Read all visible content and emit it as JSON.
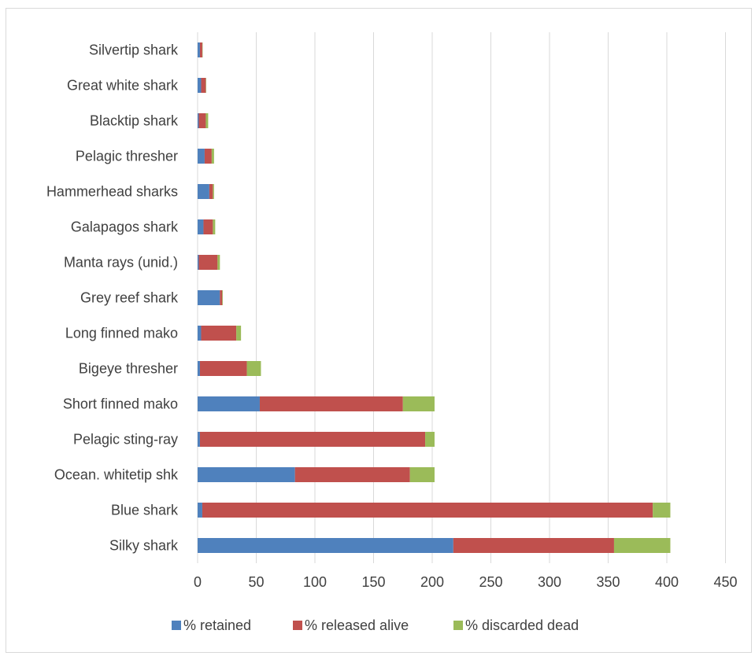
{
  "chart_data": {
    "type": "bar",
    "orientation": "horizontal",
    "stacked": true,
    "title": "",
    "xlabel": "",
    "ylabel": "",
    "categories": [
      "Silky shark",
      "Blue shark",
      "Ocean. whitetip shk",
      "Pelagic sting-ray",
      "Short finned mako",
      "Bigeye thresher",
      "Long finned mako",
      "Grey reef shark",
      "Manta rays (unid.)",
      "Galapagos shark",
      "Hammerhead sharks",
      "Pelagic thresher",
      "Blacktip shark",
      "Great white shark",
      "Silvertip shark"
    ],
    "series": [
      {
        "name": "% retained",
        "color": "#4f81bd",
        "values": [
          218,
          4,
          83,
          2,
          53,
          2,
          3,
          19,
          1,
          5,
          10,
          6,
          1,
          3,
          2
        ]
      },
      {
        "name": "% released alive",
        "color": "#c0504d",
        "values": [
          137,
          384,
          98,
          192,
          122,
          40,
          30,
          2,
          16,
          8,
          3,
          6,
          6,
          4,
          2
        ]
      },
      {
        "name": "% discarded dead",
        "color": "#9bbb59",
        "values": [
          48,
          15,
          21,
          8,
          27,
          12,
          4,
          0.5,
          2,
          2,
          1,
          2,
          2,
          0.3,
          0.3
        ]
      }
    ],
    "xlim": [
      0,
      450
    ],
    "xticks": [
      0,
      50,
      100,
      150,
      200,
      250,
      300,
      350,
      400,
      450
    ],
    "grid": true,
    "legend_position": "bottom"
  }
}
